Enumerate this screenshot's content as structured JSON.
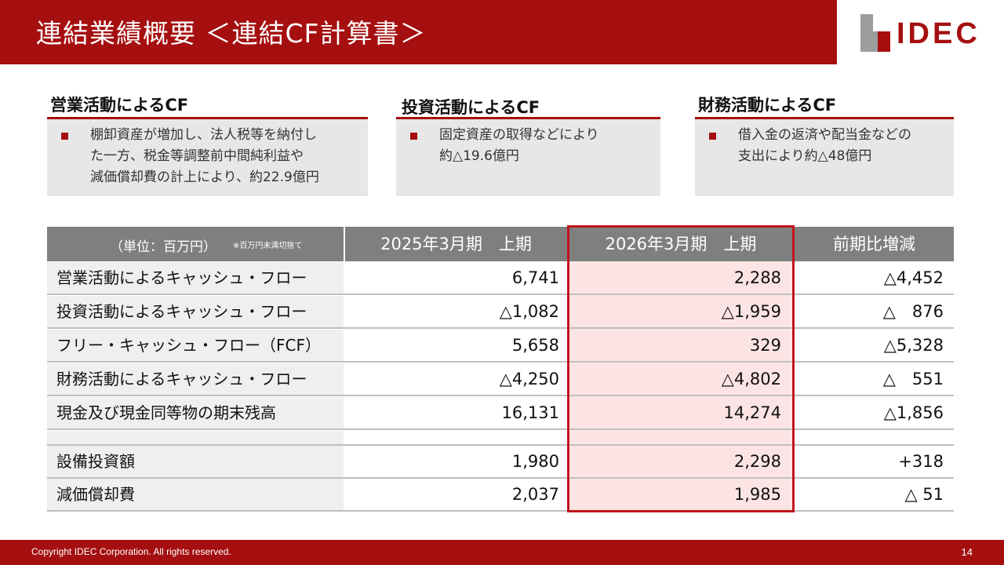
{
  "header": {
    "title": "連結業績概要 ＜連結CF計算書＞",
    "logo_text": "IDEC"
  },
  "summary": [
    {
      "title": "営業活動によるCF",
      "lines": [
        "棚卸資産が増加し、法人税等を納付し",
        "た一方、税金等調整前中間純利益や",
        "減価償却費の計上により、約22.9億円"
      ]
    },
    {
      "title": "投資活動によるCF",
      "lines": [
        "固定資産の取得などにより",
        "約△19.6億円"
      ]
    },
    {
      "title": "財務活動によるCF",
      "lines": [
        "借入金の返済や配当金などの",
        "支出により約△48億円"
      ]
    }
  ],
  "table": {
    "unit_label": "（単位：百万円）",
    "unit_note": "※百万円未満切捨て",
    "columns": [
      "2025年3月期　上期",
      "2026年3月期　上期",
      "前期比増減"
    ],
    "rows": [
      {
        "label": "営業活動によるキャッシュ・フロー",
        "prev": "6,741",
        "curr": "2,288",
        "diff": "△4,452"
      },
      {
        "label": "投資活動によるキャッシュ・フロー",
        "prev": "△1,082",
        "curr": "△1,959",
        "diff": "△　876"
      },
      {
        "label": "フリー・キャッシュ・フロー（FCF）",
        "prev": "5,658",
        "curr": "329",
        "diff": "△5,328"
      },
      {
        "label": "財務活動によるキャッシュ・フロー",
        "prev": "△4,250",
        "curr": "△4,802",
        "diff": "△　551"
      },
      {
        "label": "現金及び現金同等物の期末残高",
        "prev": "16,131",
        "curr": "14,274",
        "diff": "△1,856"
      },
      {
        "label": "設備投資額",
        "prev": "1,980",
        "curr": "2,298",
        "diff": "+318"
      },
      {
        "label": "減価償却費",
        "prev": "2,037",
        "curr": "1,985",
        "diff": "△ 51"
      }
    ]
  },
  "footer": {
    "copyright": "Copyright IDEC Corporation. All rights reserved.",
    "page": "14"
  },
  "colors": {
    "brand_red": "#a50f10",
    "highlight_border": "#c0141b",
    "highlight_fill": "#fde4e4",
    "header_gray": "#7f7f7f"
  }
}
